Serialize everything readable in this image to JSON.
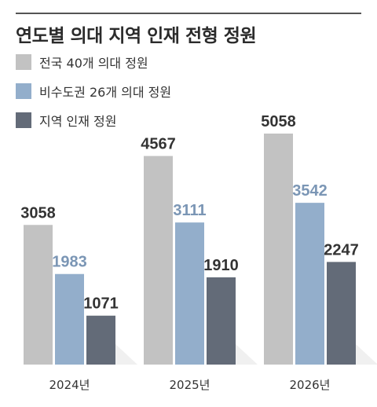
{
  "chart_data": {
    "type": "bar",
    "title": "연도별 의대 지역 인재 전형 정원",
    "categories": [
      "2024년",
      "2025년",
      "2026년"
    ],
    "series": [
      {
        "name": "전국 40개 의대 정원",
        "values": [
          3058,
          4567,
          5058
        ],
        "color": "#c2c2c2",
        "label_color": "#333333"
      },
      {
        "name": "비수도권 26개 의대 정원",
        "values": [
          1983,
          3111,
          3542
        ],
        "color": "#93aecb",
        "label_color": "#7b96b5"
      },
      {
        "name": "지역 인재 정원",
        "values": [
          1071,
          1910,
          2247
        ],
        "color": "#636b78",
        "label_color": "#333333"
      }
    ],
    "ylim": [
      0,
      5058
    ],
    "legend": "top-left",
    "grid": false
  }
}
